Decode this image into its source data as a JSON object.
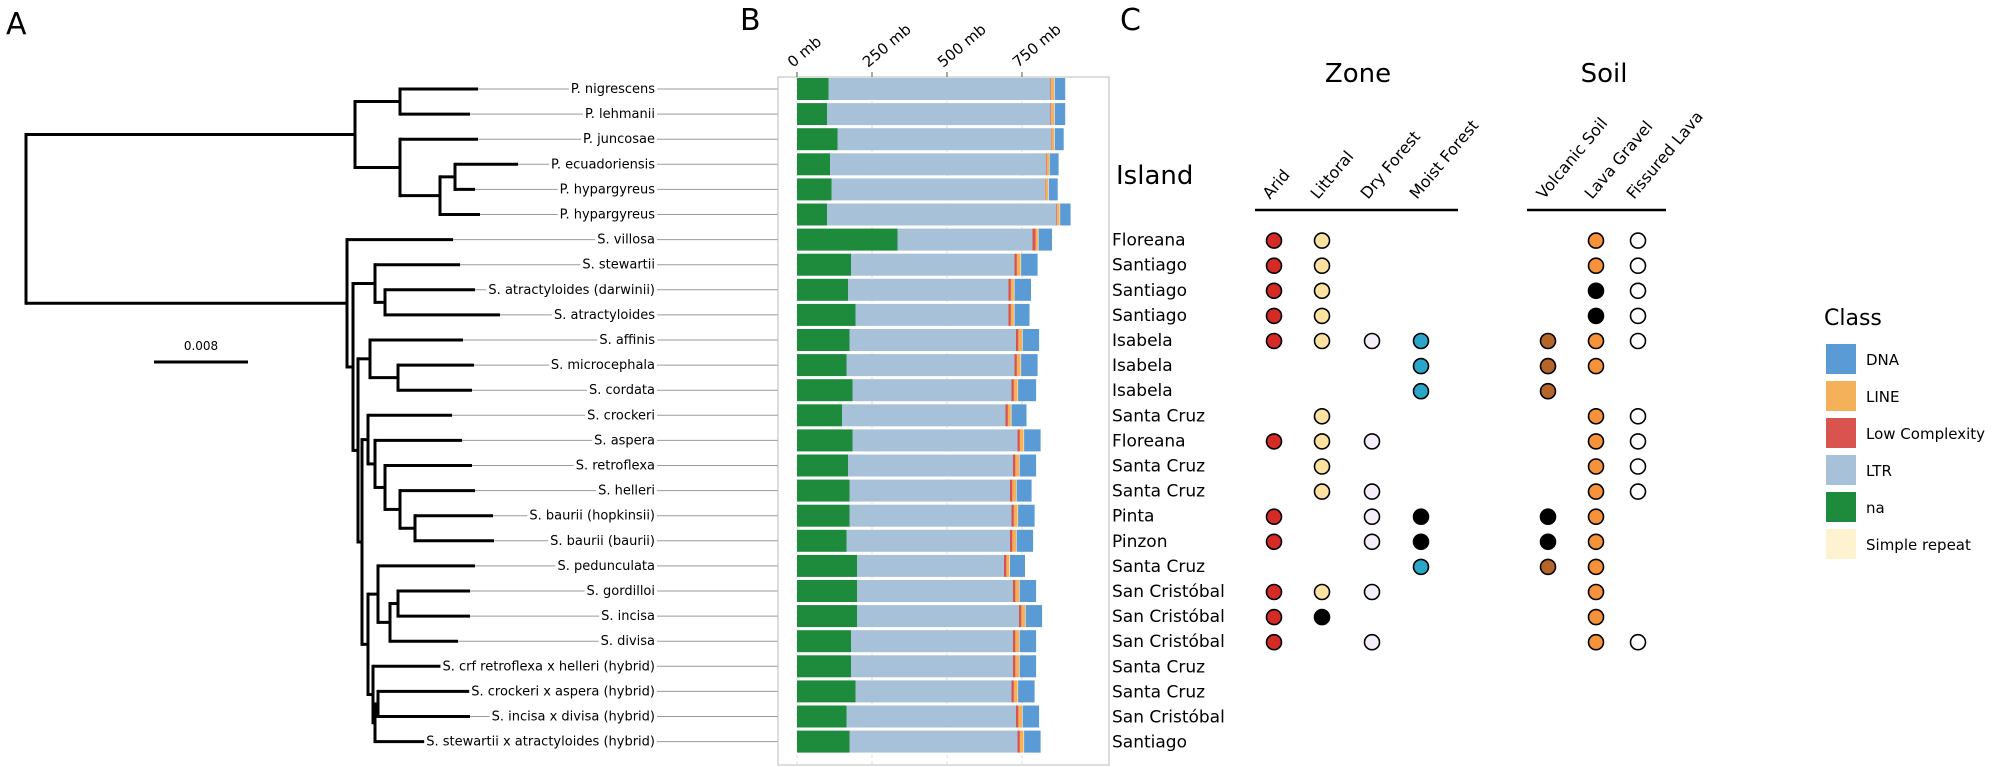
{
  "panels": {
    "a": "A",
    "b": "B",
    "c": "C"
  },
  "scale_bar": {
    "label": "0.008"
  },
  "island_header": "Island",
  "group_headers": {
    "zone": "Zone",
    "soil": "Soil"
  },
  "columns": [
    {
      "key": "arid",
      "label": "Arid",
      "group": "zone"
    },
    {
      "key": "littoral",
      "label": "Littoral",
      "group": "zone"
    },
    {
      "key": "dry_forest",
      "label": "Dry Forest",
      "group": "zone"
    },
    {
      "key": "moist_forest",
      "label": "Moist Forest",
      "group": "zone"
    },
    {
      "key": "volcanic_soil",
      "label": "Volcanic Soil",
      "group": "soil"
    },
    {
      "key": "lava_gravel",
      "label": "Lava Gravel",
      "group": "soil"
    },
    {
      "key": "fissured_lava",
      "label": "Fissured Lava",
      "group": "soil"
    }
  ],
  "dot_colors": {
    "red": "#d42b27",
    "cream": "#fbe2a0",
    "lavender": "#f4eefa",
    "cyan": "#2aa6c9",
    "brown": "#b5652a",
    "orange": "#f5923a",
    "black": "#000000",
    "white": "#ffffff"
  },
  "chart_data": {
    "type": "bar",
    "orientation": "horizontal",
    "stacked": true,
    "x_ticks": [
      "0 mb",
      "250 mb",
      "500 mb",
      "750 mb"
    ],
    "x_tick_values": [
      0,
      250,
      500,
      750
    ],
    "xlim": [
      -15,
      1000
    ],
    "legend": {
      "title": "Class",
      "position": "right",
      "entries": [
        {
          "name": "DNA",
          "color": "#5b9bd5"
        },
        {
          "name": "LINE",
          "color": "#f4b15a"
        },
        {
          "name": "Low Complexity",
          "color": "#d9534f"
        },
        {
          "name": "LTR",
          "color": "#a7c1d8"
        },
        {
          "name": "na",
          "color": "#1e8a3b"
        },
        {
          "name": "Simple repeat",
          "color": "#fdf3d0"
        }
      ]
    },
    "stack_order": [
      "na",
      "LTR",
      "Low Complexity",
      "LINE",
      "Simple repeat",
      "DNA"
    ],
    "taxa": [
      {
        "name": "P. nigrescens",
        "island": "",
        "na": 105,
        "LTR": 740,
        "Low Complexity": 2,
        "LINE": 10,
        "Simple repeat": 2,
        "DNA": 35,
        "habitat": {}
      },
      {
        "name": "P. lehmanii",
        "island": "",
        "na": 100,
        "LTR": 745,
        "Low Complexity": 2,
        "LINE": 10,
        "Simple repeat": 2,
        "DNA": 35,
        "habitat": {}
      },
      {
        "name": "P. juncosae",
        "island": "",
        "na": 135,
        "LTR": 712,
        "Low Complexity": 2,
        "LINE": 8,
        "Simple repeat": 2,
        "DNA": 30,
        "habitat": {}
      },
      {
        "name": "P. ecuadoriensis",
        "island": "",
        "na": 110,
        "LTR": 720,
        "Low Complexity": 2,
        "LINE": 8,
        "Simple repeat": 2,
        "DNA": 30,
        "habitat": {}
      },
      {
        "name": "P. hypargyreus",
        "island": "",
        "na": 115,
        "LTR": 712,
        "Low Complexity": 2,
        "LINE": 8,
        "Simple repeat": 2,
        "DNA": 30,
        "habitat": {}
      },
      {
        "name": "P. hypargyreus",
        "island": "",
        "na": 100,
        "LTR": 765,
        "Low Complexity": 2,
        "LINE": 8,
        "Simple repeat": 2,
        "DNA": 35,
        "habitat": {}
      },
      {
        "name": "S. villosa",
        "island": "Floreana",
        "na": 335,
        "LTR": 450,
        "Low Complexity": 10,
        "LINE": 8,
        "Simple repeat": 2,
        "DNA": 45,
        "habitat": {
          "arid": "red",
          "littoral": "cream",
          "lava_gravel": "orange",
          "fissured_lava": "white"
        }
      },
      {
        "name": "S. stewartii",
        "island": "Santiago",
        "na": 180,
        "LTR": 545,
        "Low Complexity": 8,
        "LINE": 12,
        "Simple repeat": 2,
        "DNA": 55,
        "habitat": {
          "arid": "red",
          "littoral": "cream",
          "lava_gravel": "orange",
          "fissured_lava": "white"
        }
      },
      {
        "name": "S. atractyloides (darwinii)",
        "island": "Santiago",
        "na": 170,
        "LTR": 535,
        "Low Complexity": 8,
        "LINE": 10,
        "Simple repeat": 2,
        "DNA": 55,
        "habitat": {
          "arid": "red",
          "littoral": "cream",
          "lava_gravel": "black",
          "fissured_lava": "white"
        }
      },
      {
        "name": "S. atractyloides",
        "island": "Santiago",
        "na": 195,
        "LTR": 510,
        "Low Complexity": 8,
        "LINE": 10,
        "Simple repeat": 2,
        "DNA": 50,
        "habitat": {
          "arid": "red",
          "littoral": "cream",
          "lava_gravel": "black",
          "fissured_lava": "white"
        }
      },
      {
        "name": "S. affinis",
        "island": "Isabela",
        "na": 175,
        "LTR": 555,
        "Low Complexity": 8,
        "LINE": 12,
        "Simple repeat": 2,
        "DNA": 55,
        "habitat": {
          "arid": "red",
          "littoral": "cream",
          "dry_forest": "lavender",
          "moist_forest": "cyan",
          "volcanic_soil": "brown",
          "lava_gravel": "orange",
          "fissured_lava": "white"
        }
      },
      {
        "name": "S. microcephala",
        "island": "Isabela",
        "na": 165,
        "LTR": 560,
        "Low Complexity": 8,
        "LINE": 12,
        "Simple repeat": 2,
        "DNA": 55,
        "habitat": {
          "moist_forest": "cyan",
          "volcanic_soil": "brown",
          "lava_gravel": "orange"
        }
      },
      {
        "name": "S. cordata",
        "island": "Isabela",
        "na": 185,
        "LTR": 530,
        "Low Complexity": 8,
        "LINE": 12,
        "Simple repeat": 2,
        "DNA": 60,
        "habitat": {
          "moist_forest": "cyan",
          "volcanic_soil": "brown"
        }
      },
      {
        "name": "S. crockeri",
        "island": "Santa Cruz",
        "na": 150,
        "LTR": 545,
        "Low Complexity": 8,
        "LINE": 10,
        "Simple repeat": 2,
        "DNA": 50,
        "habitat": {
          "littoral": "cream",
          "lava_gravel": "orange",
          "fissured_lava": "white"
        }
      },
      {
        "name": "S. aspera",
        "island": "Floreana",
        "na": 185,
        "LTR": 550,
        "Low Complexity": 8,
        "LINE": 12,
        "Simple repeat": 2,
        "DNA": 55,
        "habitat": {
          "arid": "red",
          "littoral": "cream",
          "dry_forest": "lavender",
          "lava_gravel": "orange",
          "fissured_lava": "white"
        }
      },
      {
        "name": "S. retroflexa",
        "island": "Santa Cruz",
        "na": 170,
        "LTR": 550,
        "Low Complexity": 8,
        "LINE": 12,
        "Simple repeat": 2,
        "DNA": 55,
        "habitat": {
          "littoral": "cream",
          "lava_gravel": "orange",
          "fissured_lava": "white"
        }
      },
      {
        "name": "S. helleri",
        "island": "Santa Cruz",
        "na": 175,
        "LTR": 535,
        "Low Complexity": 8,
        "LINE": 12,
        "Simple repeat": 2,
        "DNA": 50,
        "habitat": {
          "littoral": "cream",
          "dry_forest": "lavender",
          "lava_gravel": "orange",
          "fissured_lava": "white"
        }
      },
      {
        "name": "S. baurii (hopkinsii)",
        "island": "Pinta",
        "na": 175,
        "LTR": 540,
        "Low Complexity": 8,
        "LINE": 12,
        "Simple repeat": 2,
        "DNA": 55,
        "habitat": {
          "arid": "red",
          "dry_forest": "lavender",
          "moist_forest": "black",
          "volcanic_soil": "black",
          "lava_gravel": "orange"
        }
      },
      {
        "name": "S. baurii (baurii)",
        "island": "Pinzon",
        "na": 165,
        "LTR": 545,
        "Low Complexity": 8,
        "LINE": 12,
        "Simple repeat": 2,
        "DNA": 55,
        "habitat": {
          "arid": "red",
          "dry_forest": "lavender",
          "moist_forest": "black",
          "volcanic_soil": "black",
          "lava_gravel": "orange"
        }
      },
      {
        "name": "S. pedunculata",
        "island": "Santa Cruz",
        "na": 200,
        "LTR": 490,
        "Low Complexity": 8,
        "LINE": 10,
        "Simple repeat": 2,
        "DNA": 50,
        "habitat": {
          "moist_forest": "cyan",
          "volcanic_soil": "brown",
          "lava_gravel": "orange"
        }
      },
      {
        "name": "S. gordilloi",
        "island": "San Cristóbal",
        "na": 200,
        "LTR": 520,
        "Low Complexity": 8,
        "LINE": 12,
        "Simple repeat": 2,
        "DNA": 55,
        "habitat": {
          "arid": "red",
          "littoral": "cream",
          "dry_forest": "lavender",
          "lava_gravel": "orange"
        }
      },
      {
        "name": "S. incisa",
        "island": "San Cristóbal",
        "na": 200,
        "LTR": 540,
        "Low Complexity": 8,
        "LINE": 12,
        "Simple repeat": 2,
        "DNA": 55,
        "habitat": {
          "arid": "red",
          "littoral": "black",
          "lava_gravel": "orange"
        }
      },
      {
        "name": "S. divisa",
        "island": "San Cristóbal",
        "na": 180,
        "LTR": 540,
        "Low Complexity": 8,
        "LINE": 12,
        "Simple repeat": 2,
        "DNA": 55,
        "habitat": {
          "arid": "red",
          "dry_forest": "lavender",
          "lava_gravel": "orange",
          "fissured_lava": "white"
        }
      },
      {
        "name": "S. crf retroflexa x helleri (hybrid)",
        "island": "Santa Cruz",
        "na": 180,
        "LTR": 540,
        "Low Complexity": 8,
        "LINE": 12,
        "Simple repeat": 2,
        "DNA": 55,
        "habitat": {}
      },
      {
        "name": "S. crockeri x aspera (hybrid)",
        "island": "Santa Cruz",
        "na": 195,
        "LTR": 520,
        "Low Complexity": 8,
        "LINE": 12,
        "Simple repeat": 2,
        "DNA": 55,
        "habitat": {}
      },
      {
        "name": "S. incisa x divisa (hybrid)",
        "island": "San Cristóbal",
        "na": 165,
        "LTR": 565,
        "Low Complexity": 8,
        "LINE": 12,
        "Simple repeat": 2,
        "DNA": 55,
        "habitat": {}
      },
      {
        "name": "S. stewartii x atractyloides  (hybrid)",
        "island": "Santiago",
        "na": 175,
        "LTR": 560,
        "Low Complexity": 8,
        "LINE": 12,
        "Simple repeat": 2,
        "DNA": 55,
        "habitat": {}
      }
    ]
  }
}
